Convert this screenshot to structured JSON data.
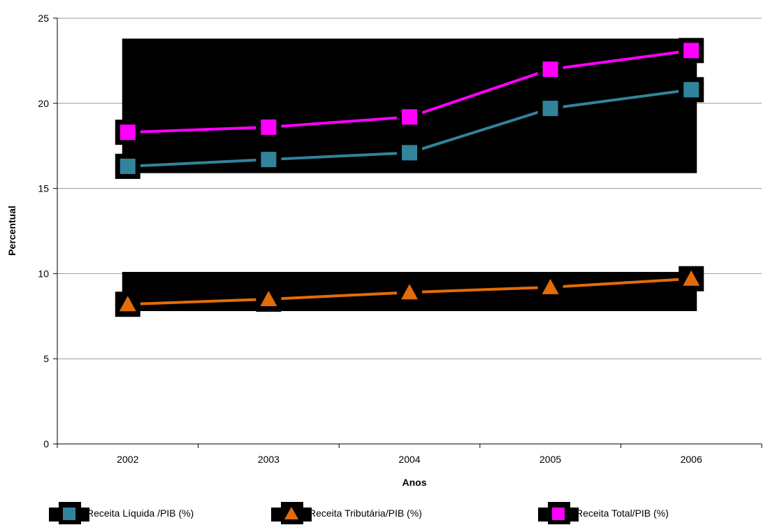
{
  "chart_data": {
    "type": "line",
    "categories": [
      "2002",
      "2003",
      "2004",
      "2005",
      "2006"
    ],
    "series": [
      {
        "name": "Receita Líquida  /PIB (%)",
        "values": [
          16.3,
          16.7,
          17.1,
          19.7,
          20.8
        ],
        "color": "#31849b",
        "marker": "square"
      },
      {
        "name": "Receita Tributária/PIB (%)",
        "values": [
          8.2,
          8.5,
          8.9,
          9.2,
          9.7
        ],
        "color": "#e36c0a",
        "marker": "triangle"
      },
      {
        "name": "Receita Total/PIB (%)",
        "values": [
          18.3,
          18.6,
          19.2,
          22.0,
          23.1
        ],
        "color": "#ff00ff",
        "marker": "square"
      }
    ],
    "title": "",
    "xlabel": "Anos",
    "ylabel": "Percentual",
    "ylim": [
      0,
      25
    ],
    "yticks": [
      "0",
      "5",
      "10",
      "15",
      "20",
      "25"
    ],
    "grid": true,
    "legend_position": "bottom"
  }
}
